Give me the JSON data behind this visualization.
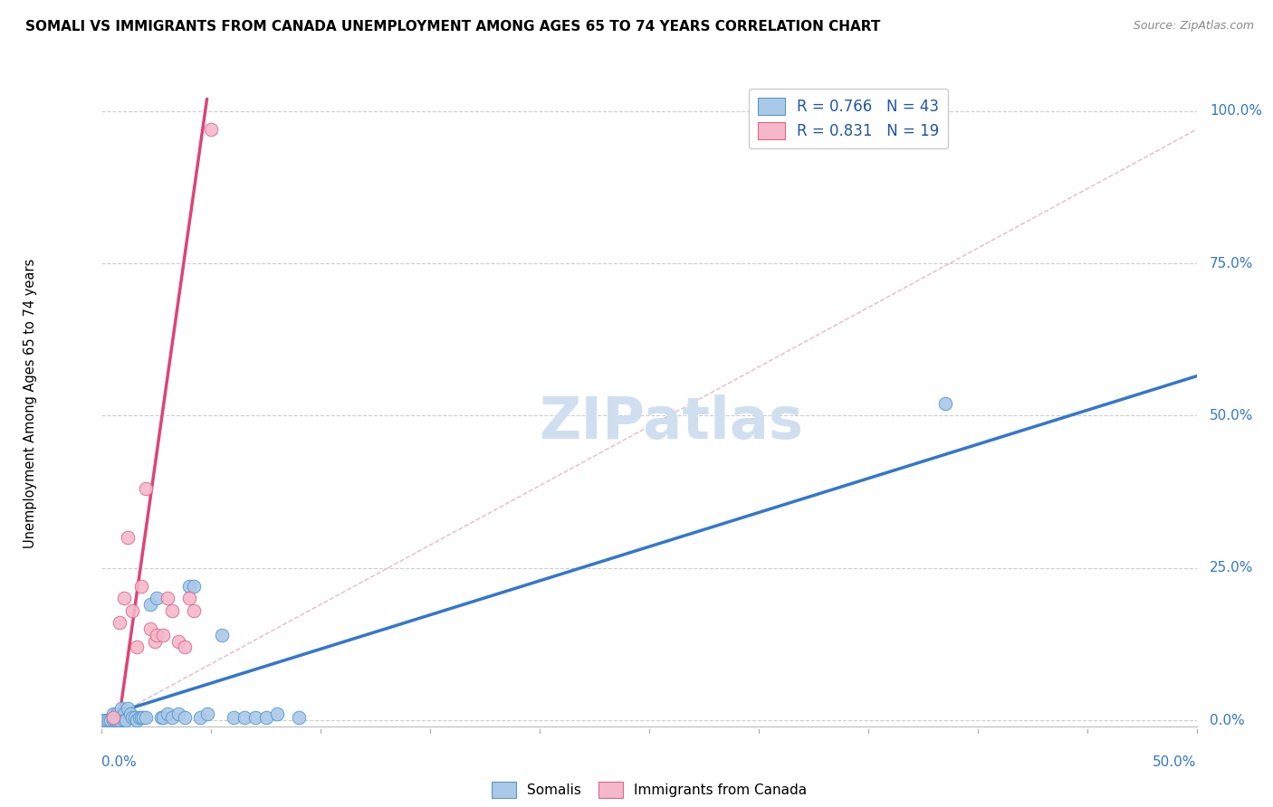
{
  "title": "SOMALI VS IMMIGRANTS FROM CANADA UNEMPLOYMENT AMONG AGES 65 TO 74 YEARS CORRELATION CHART",
  "source": "Source: ZipAtlas.com",
  "ylabel": "Unemployment Among Ages 65 to 74 years",
  "ytick_labels": [
    "100.0%",
    "75.0%",
    "50.0%",
    "25.0%",
    "0.0%"
  ],
  "ytick_vals": [
    1.0,
    0.75,
    0.5,
    0.25,
    0.0
  ],
  "xlim": [
    0.0,
    0.5
  ],
  "ylim": [
    -0.01,
    1.05
  ],
  "legend_blue_r": "0.766",
  "legend_blue_n": "43",
  "legend_pink_r": "0.831",
  "legend_pink_n": "19",
  "blue_scatter_color": "#aac8e8",
  "pink_scatter_color": "#f4b8ca",
  "blue_edge_color": "#5599cc",
  "pink_edge_color": "#dd6688",
  "blue_line_color": "#3377cc",
  "pink_line_color": "#dd4477",
  "ref_line_color": "#e8b8c8",
  "watermark_color": "#d0dff0",
  "somali_x": [
    0.0,
    0.002,
    0.003,
    0.004,
    0.005,
    0.005,
    0.006,
    0.007,
    0.007,
    0.008,
    0.009,
    0.01,
    0.01,
    0.011,
    0.012,
    0.013,
    0.014,
    0.015,
    0.016,
    0.017,
    0.018,
    0.019,
    0.02,
    0.022,
    0.025,
    0.027,
    0.028,
    0.03,
    0.032,
    0.035,
    0.038,
    0.04,
    0.042,
    0.045,
    0.048,
    0.055,
    0.06,
    0.065,
    0.07,
    0.075,
    0.08,
    0.09,
    0.385
  ],
  "somali_y": [
    0.0,
    0.0,
    0.0,
    0.0,
    0.01,
    0.0,
    0.0,
    0.01,
    0.0,
    0.0,
    0.02,
    0.01,
    0.0,
    0.0,
    0.02,
    0.01,
    0.005,
    0.005,
    0.0,
    0.005,
    0.005,
    0.005,
    0.005,
    0.19,
    0.2,
    0.005,
    0.005,
    0.01,
    0.005,
    0.01,
    0.005,
    0.22,
    0.22,
    0.005,
    0.01,
    0.14,
    0.005,
    0.005,
    0.005,
    0.005,
    0.01,
    0.005,
    0.52
  ],
  "canada_x": [
    0.005,
    0.008,
    0.01,
    0.012,
    0.014,
    0.016,
    0.018,
    0.02,
    0.022,
    0.024,
    0.025,
    0.028,
    0.03,
    0.032,
    0.035,
    0.038,
    0.04,
    0.042,
    0.05
  ],
  "canada_y": [
    0.005,
    0.16,
    0.2,
    0.3,
    0.18,
    0.12,
    0.22,
    0.38,
    0.15,
    0.13,
    0.14,
    0.14,
    0.2,
    0.18,
    0.13,
    0.12,
    0.2,
    0.18,
    0.97
  ],
  "blue_trend": [
    0.0,
    0.5,
    0.005,
    0.565
  ],
  "pink_trend": [
    0.005,
    0.048,
    -0.07,
    1.02
  ],
  "ref_line": [
    0.005,
    0.5,
    0.005,
    0.97
  ]
}
